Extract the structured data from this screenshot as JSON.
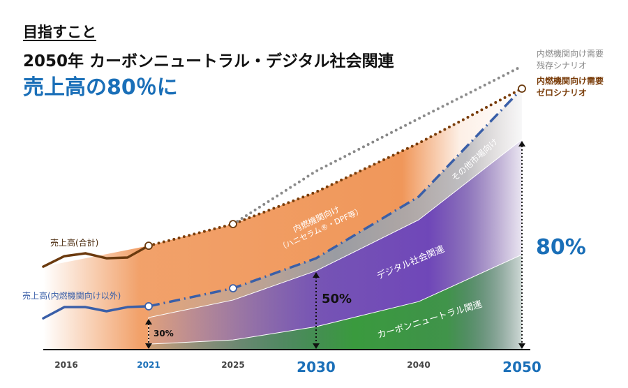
{
  "header": {
    "section_title": "目指すこと",
    "headline": "2050年 カーボンニュートラル・デジタル社会関連",
    "goal": "売上高の80％に"
  },
  "chart_data": {
    "type": "area",
    "title": "",
    "xlabel": "",
    "ylabel": "",
    "y_unit": "sales index (2050 zero-scenario total = 100), estimated",
    "x_tick_labels": [
      {
        "label": "2016",
        "highlight": false
      },
      {
        "label": "2021",
        "highlight": true
      },
      {
        "label": "2025",
        "highlight": false
      },
      {
        "label": "2030",
        "highlight": true
      },
      {
        "label": "2040",
        "highlight": false
      },
      {
        "label": "2050",
        "highlight": true
      }
    ],
    "lines": [
      {
        "name": "売上高(合計)",
        "style": "solid",
        "color": "#6b3a0e",
        "x": [
          2016,
          2017,
          2018,
          2019,
          2020,
          2021
        ],
        "y": [
          31.8,
          35.8,
          36.9,
          35.0,
          35.3,
          39.8
        ]
      },
      {
        "name": "売上高(内燃機関向け以外)",
        "style": "solid",
        "color": "#3a5fa8",
        "x": [
          2016,
          2017,
          2018,
          2019,
          2020,
          2021
        ],
        "y": [
          12.0,
          16.3,
          16.3,
          14.7,
          16.3,
          16.6
        ]
      },
      {
        "name": "内燃機関向け需要 ゼロシナリオ",
        "style": "dotted",
        "color": "#7a3d0a",
        "x": [
          2021,
          2025,
          2030,
          2040,
          2050
        ],
        "y": [
          39.8,
          48.1,
          60.4,
          79.1,
          100
        ]
      },
      {
        "name": "内燃機関向け需要 残存シナリオ",
        "style": "dotted",
        "color": "#8a8a8a",
        "x": [
          2025,
          2030,
          2040,
          2050
        ],
        "y": [
          48.1,
          68.4,
          88.5,
          108.6
        ]
      },
      {
        "name": "内燃機関向け以外 (forecast)",
        "style": "dash-dot",
        "color": "#3a5fa8",
        "x": [
          2021,
          2025,
          2030,
          2040,
          2050
        ],
        "y": [
          16.6,
          23.5,
          35.0,
          58.6,
          100
        ]
      }
    ],
    "areas": [
      {
        "name": "カーボンニュートラル関連",
        "color": "#3a9a3e",
        "x": [
          2021,
          2025,
          2030,
          2040,
          2050
        ],
        "y": [
          2.1,
          3.7,
          8.8,
          18.4,
          36.4
        ]
      },
      {
        "name": "デジタル社会関連",
        "color": "#6f47b8",
        "x": [
          2021,
          2025,
          2030,
          2040,
          2050
        ],
        "y": [
          12.3,
          19.0,
          30.2,
          49.7,
          80.5
        ]
      },
      {
        "name": "その他市場向け",
        "color": "#9a9ca2",
        "x": [
          2021,
          2025,
          2030,
          2040,
          2050
        ],
        "y": [
          16.6,
          23.5,
          35.0,
          58.6,
          100
        ]
      },
      {
        "name": "内燃機関向け（ハニセラム®・DPF等）",
        "color": "#f0975a",
        "x": [
          2016,
          2021,
          2025,
          2030,
          2040,
          2050
        ],
        "y": [
          31.8,
          39.8,
          48.1,
          60.4,
          79.1,
          100
        ]
      }
    ],
    "annotations": [
      {
        "x": 2021,
        "label": "30%"
      },
      {
        "x": 2030,
        "label": "50%"
      },
      {
        "x": 2050,
        "label": "80%"
      }
    ],
    "colors": {
      "accent": "#1a6fb8",
      "orange": "#f0975a",
      "purple": "#6f47b8",
      "green": "#3a9a3e",
      "gray": "#9a9ca2"
    }
  },
  "labels": {
    "total": "売上高(合計)",
    "non_ice": "売上高(内燃機関向け以外)",
    "residual_l1": "内燃機関向け需要",
    "residual_l2": "残存シナリオ",
    "zero_l1": "内燃機関向け需要",
    "zero_l2": "ゼロシナリオ",
    "ice_l1": "内燃機関向け",
    "ice_l2": "（ハニセラム®・DPF等）",
    "other": "その他市場向け",
    "digital": "デジタル社会関連",
    "carbon": "カーボンニュートラル関連"
  }
}
